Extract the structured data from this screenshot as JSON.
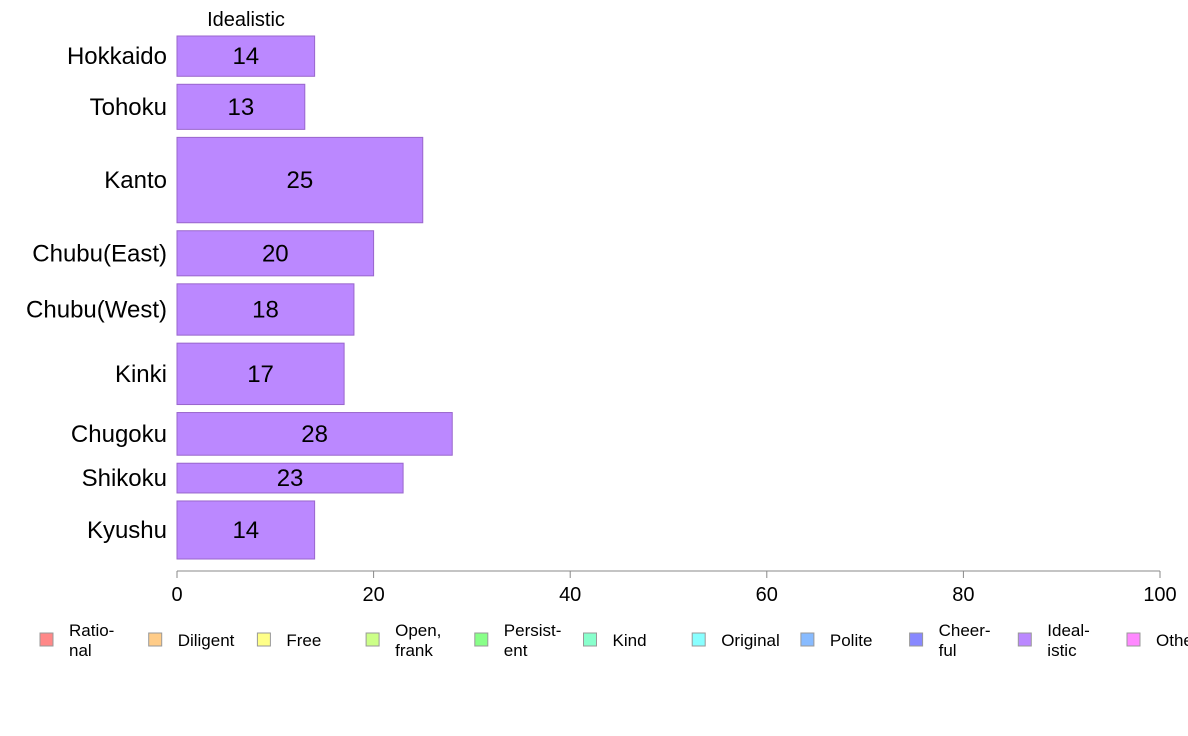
{
  "chart_data": {
    "type": "bar",
    "orientation": "horizontal",
    "header": "Idealistic",
    "categories": [
      "Hokkaido",
      "Tohoku",
      "Kanto",
      "Chubu(East)",
      "Chubu(West)",
      "Kinki",
      "Chugoku",
      "Shikoku",
      "Kyushu"
    ],
    "values": [
      14,
      13,
      25,
      20,
      18,
      17,
      28,
      23,
      14
    ],
    "relative_bar_widths": [
      0.84,
      0.94,
      1.78,
      0.94,
      1.07,
      1.28,
      0.89,
      0.62,
      1.21
    ],
    "xlim": [
      0,
      100
    ],
    "xticks": [
      "0",
      "20",
      "40",
      "60",
      "80",
      "100"
    ],
    "grid": false,
    "bar_color": "#bb88ff",
    "bar_stroke": "#9966cc",
    "legend_position": "bottom",
    "legend": [
      {
        "label": [
          "Ratio-",
          "nal"
        ],
        "color": "#ff8888"
      },
      {
        "label": [
          "Diligent"
        ],
        "color": "#ffcc88"
      },
      {
        "label": [
          "Free"
        ],
        "color": "#ffff88"
      },
      {
        "label": [
          "Open,",
          "frank"
        ],
        "color": "#ccff88"
      },
      {
        "label": [
          "Persist-",
          "ent"
        ],
        "color": "#88ff88"
      },
      {
        "label": [
          "Kind"
        ],
        "color": "#88ffcc"
      },
      {
        "label": [
          "Original"
        ],
        "color": "#88ffff"
      },
      {
        "label": [
          "Polite"
        ],
        "color": "#88bbff"
      },
      {
        "label": [
          "Cheer-",
          "ful"
        ],
        "color": "#8888ff"
      },
      {
        "label": [
          "Ideal-",
          "istic"
        ],
        "color": "#bb88ff"
      },
      {
        "label": [
          "Others"
        ],
        "color": "#ff88ff"
      }
    ]
  }
}
